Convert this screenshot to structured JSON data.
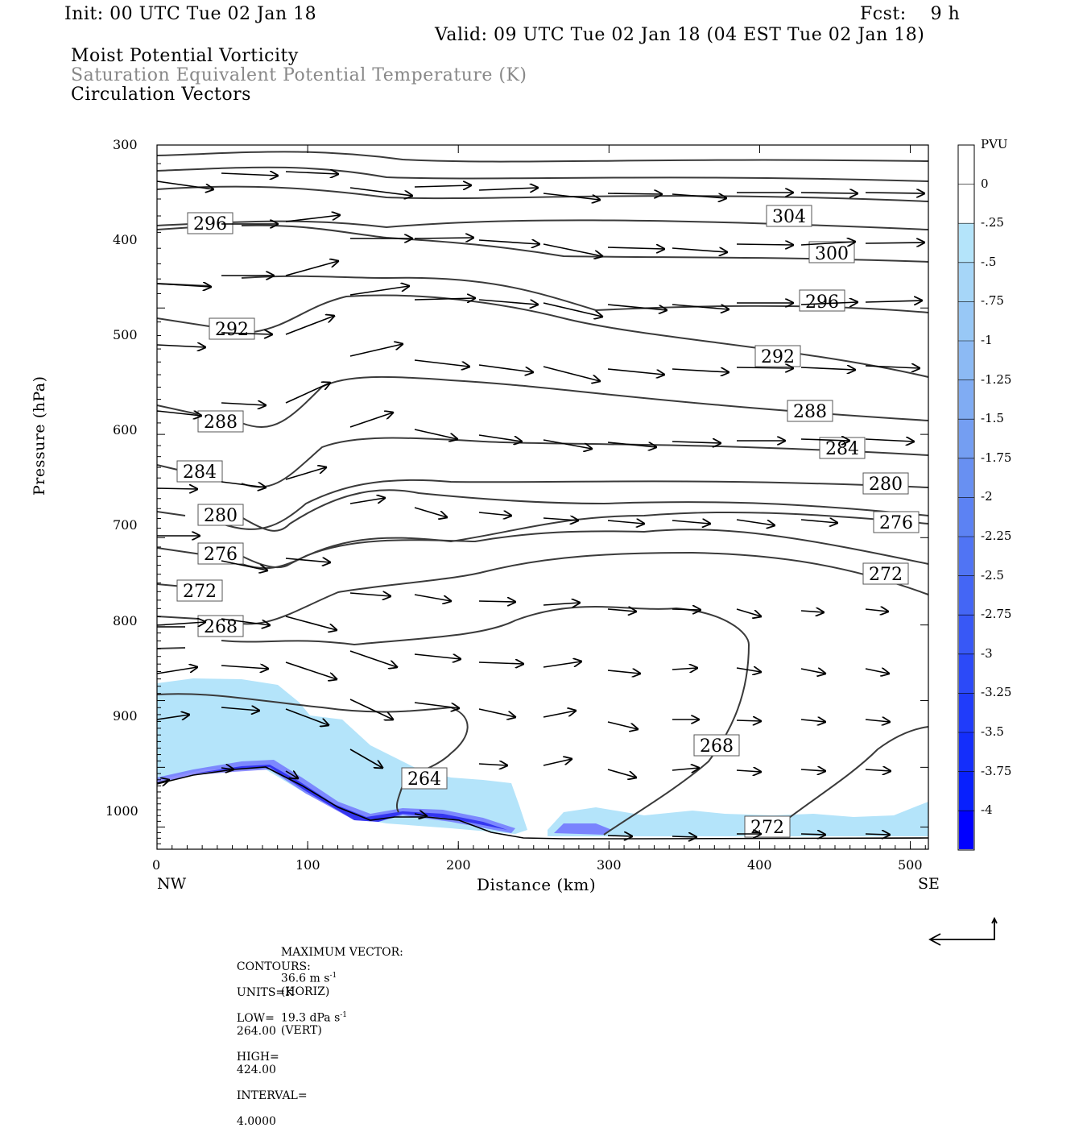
{
  "header": {
    "init": "Init: 00 UTC Tue 02 Jan 18",
    "fcst": "Fcst:    9 h",
    "valid": "Valid: 09 UTC Tue 02 Jan 18 (04 EST Tue 02 Jan 18)",
    "field1": "Moist Potential Vorticity",
    "field2": "Saturation Equivalent Potential Temperature (K)",
    "field3": "Circulation Vectors"
  },
  "colors": {
    "contour": "#3a3a3a",
    "light_pv": "#b4e4fa",
    "deep_pv": "#0000ff",
    "frame": "#000000"
  },
  "chart_data": {
    "type": "contour-cross-section",
    "xlabel": "Distance (km)",
    "ylabel": "Pressure (hPa)",
    "xlim": [
      0,
      512
    ],
    "ylim": [
      1040,
      300
    ],
    "yscale": "log",
    "x_ticks": [
      "0",
      "100",
      "200",
      "300",
      "400",
      "500"
    ],
    "y_ticks": [
      "300",
      "400",
      "500",
      "600",
      "700",
      "800",
      "900",
      "1000"
    ],
    "x_endpoints": {
      "left": "NW",
      "right": "SE"
    },
    "contour_labels": [
      "304",
      "300",
      "296",
      "296",
      "292",
      "292",
      "288",
      "288",
      "284",
      "284",
      "280",
      "280",
      "276",
      "276",
      "272",
      "272",
      "268",
      "268",
      "264",
      "272"
    ],
    "colorbar": {
      "title": "PVU",
      "ticks": [
        "0",
        "-.25",
        "-.5",
        "-.75",
        "-1",
        "-1.25",
        "-1.5",
        "-1.75",
        "-2",
        "-2.25",
        "-2.5",
        "-2.75",
        "-3",
        "-3.25",
        "-3.5",
        "-3.75",
        "-4"
      ]
    },
    "footer": {
      "max_vector_label": "MAXIMUM VECTOR:",
      "horiz": "36.6 m s",
      "horiz_unit": "(HORIZ)",
      "vert": "19.3 dPa s",
      "vert_unit": "(VERT)",
      "contours_label": "CONTOURS:",
      "units": "UNITS=K",
      "low_label": "LOW=",
      "low": "264.00",
      "high_label": "HIGH=",
      "high": "424.00",
      "interval_label": "INTERVAL=",
      "interval": "4.0000"
    }
  }
}
